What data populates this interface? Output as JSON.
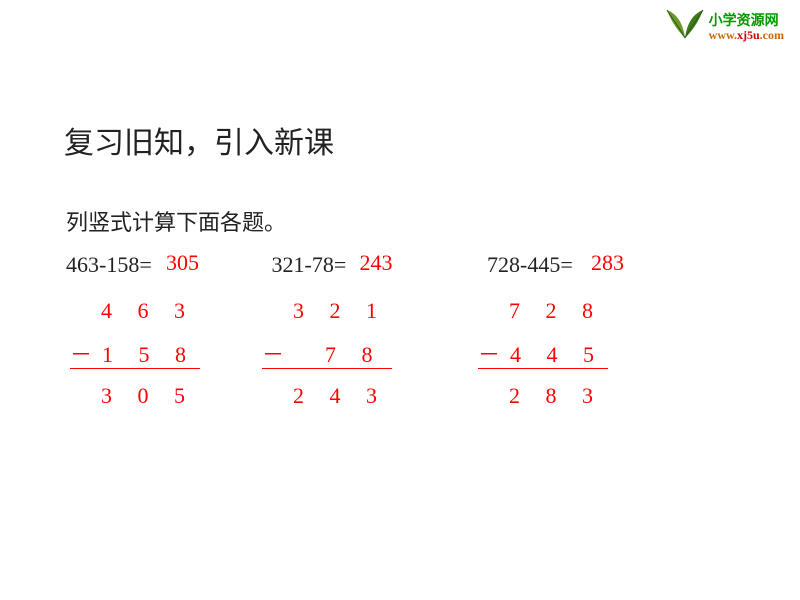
{
  "logo": {
    "cn": "小学资源网",
    "url_p1": "www.",
    "url_p2": "xj5u",
    "url_p3": ".com"
  },
  "heading": "复习旧知，引入新课",
  "subheading": "列竖式计算下面各题。",
  "equations": {
    "e1": {
      "expr": "463-158=",
      "ans": "305"
    },
    "e2": {
      "expr": "321-78=",
      "ans": "243"
    },
    "e3": {
      "expr": "728-445=",
      "ans": "283"
    }
  },
  "vertical": {
    "v1": {
      "top": "  4 6 3",
      "sub": "－1 5 8",
      "hline_width": 130,
      "result": "  3 0 5"
    },
    "v2": {
      "top": "  3 2 1",
      "sub": "－  7 8",
      "hline_width": 130,
      "result": "  2 4 3"
    },
    "v3": {
      "top": "  7 2 8",
      "sub": "－4 4 5",
      "hline_width": 130,
      "result": "  2 8 3"
    }
  },
  "colors": {
    "answer": "#ff0000",
    "text": "#222222",
    "logo_green": "#009900",
    "logo_orange": "#cc6600",
    "logo_red": "#cc0000"
  }
}
